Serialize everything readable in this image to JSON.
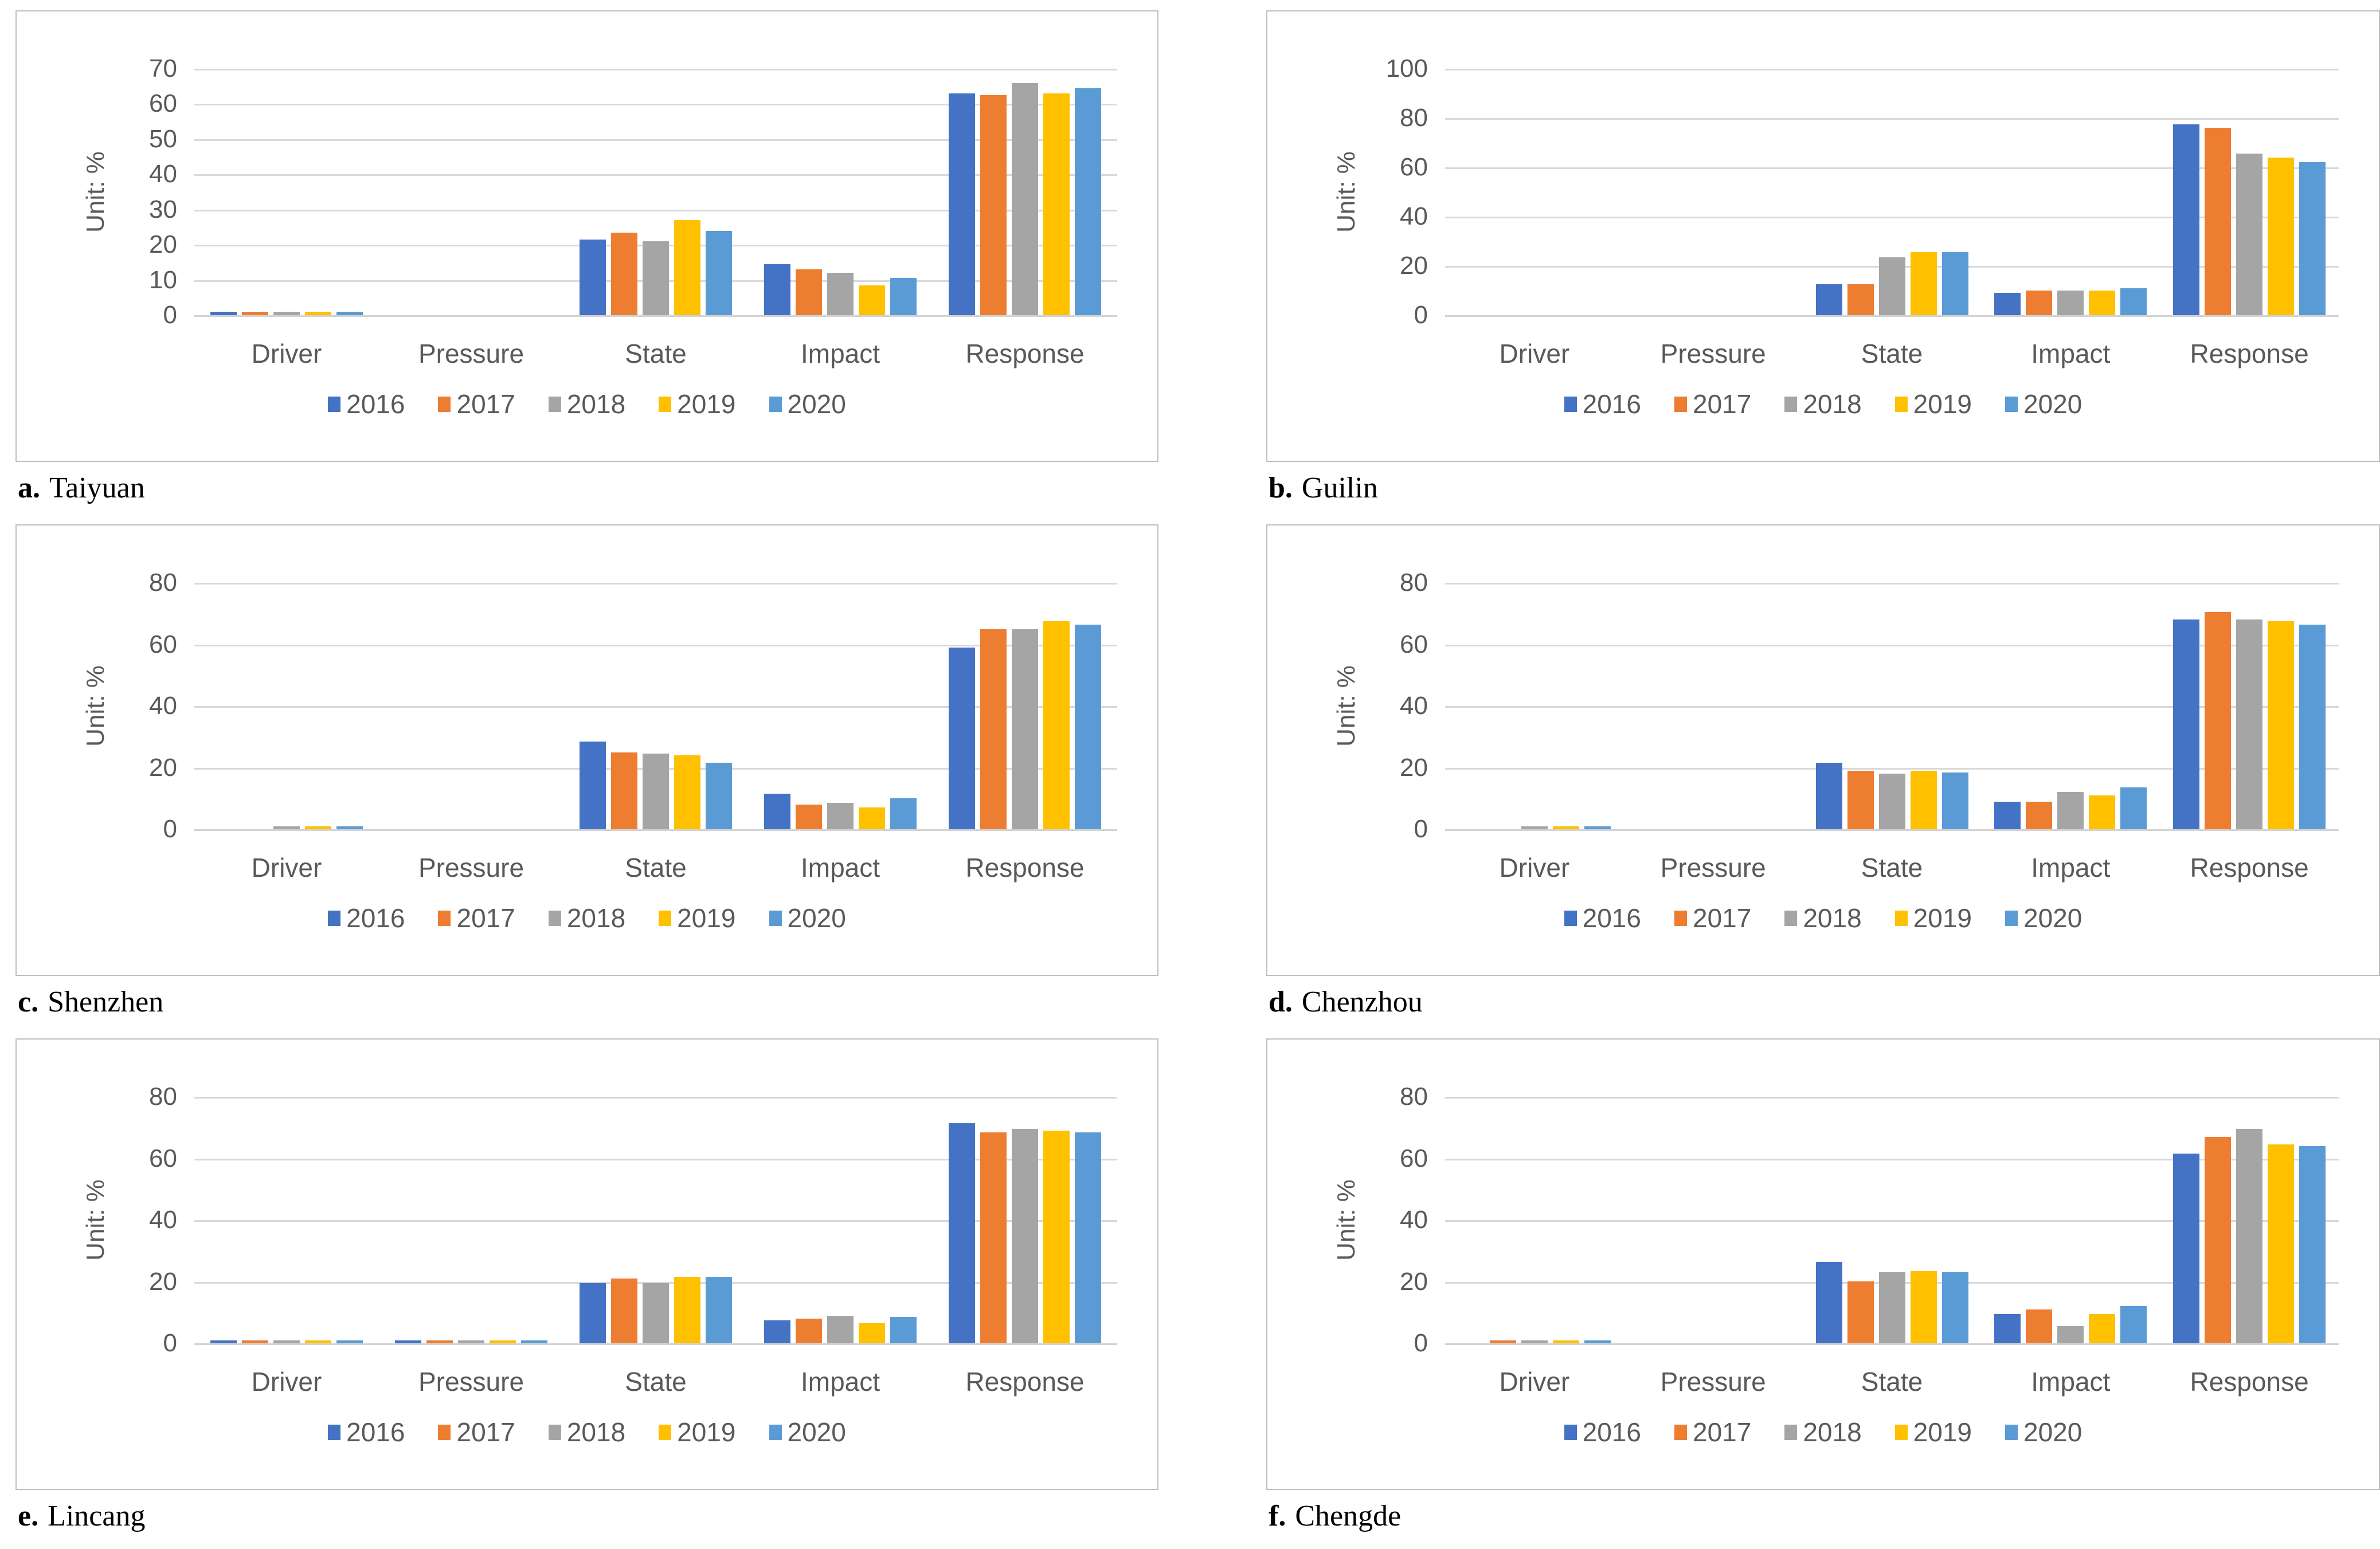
{
  "figure": {
    "y_axis_label": "Unit: %",
    "categories": [
      "Driver",
      "Pressure",
      "State",
      "Impact",
      "Response"
    ],
    "legend_years": [
      "2016",
      "2017",
      "2018",
      "2019",
      "2020"
    ],
    "series_colors": {
      "2016": "#4472C4",
      "2017": "#ED7D31",
      "2018": "#A5A5A5",
      "2019": "#FFC000",
      "2020": "#5B9BD5"
    },
    "style": {
      "gridline_color": "#D9D9D9",
      "axis_text_color": "#595959",
      "box_border_color": "#BFBFBF",
      "caption_color": "#000000",
      "background": "#FFFFFF"
    }
  },
  "chart_data": [
    {
      "id": "a",
      "type": "bar",
      "caption_letter": "a.",
      "caption_name": "Taiyuan",
      "ylabel": "Unit: %",
      "ylim": [
        0,
        70
      ],
      "ytick_step": 10,
      "grid": true,
      "legend_position": "bottom",
      "categories": [
        "Driver",
        "Pressure",
        "State",
        "Impact",
        "Response"
      ],
      "series": [
        {
          "name": "2016",
          "values": [
            1,
            0,
            21.5,
            14.5,
            63
          ]
        },
        {
          "name": "2017",
          "values": [
            1,
            0,
            23.5,
            13,
            62.5
          ]
        },
        {
          "name": "2018",
          "values": [
            1,
            0,
            21,
            12,
            66
          ]
        },
        {
          "name": "2019",
          "values": [
            1,
            0,
            27,
            8.5,
            63
          ]
        },
        {
          "name": "2020",
          "values": [
            1,
            0,
            24,
            10.5,
            64.5
          ]
        }
      ]
    },
    {
      "id": "b",
      "type": "bar",
      "caption_letter": "b.",
      "caption_name": "Guilin",
      "ylabel": "Unit: %",
      "ylim": [
        0,
        100
      ],
      "ytick_step": 20,
      "grid": true,
      "legend_position": "bottom",
      "categories": [
        "Driver",
        "Pressure",
        "State",
        "Impact",
        "Response"
      ],
      "series": [
        {
          "name": "2016",
          "values": [
            0,
            0,
            12.5,
            9,
            77.5
          ]
        },
        {
          "name": "2017",
          "values": [
            0,
            0,
            12.5,
            10,
            76
          ]
        },
        {
          "name": "2018",
          "values": [
            0,
            0,
            23.5,
            10,
            65.5
          ]
        },
        {
          "name": "2019",
          "values": [
            0,
            0,
            25.5,
            10,
            64
          ]
        },
        {
          "name": "2020",
          "values": [
            0,
            0,
            25.5,
            11,
            62
          ]
        }
      ]
    },
    {
      "id": "c",
      "type": "bar",
      "caption_letter": "c.",
      "caption_name": "Shenzhen",
      "ylabel": "Unit: %",
      "ylim": [
        0,
        80
      ],
      "ytick_step": 20,
      "grid": true,
      "legend_position": "bottom",
      "categories": [
        "Driver",
        "Pressure",
        "State",
        "Impact",
        "Response"
      ],
      "series": [
        {
          "name": "2016",
          "values": [
            0,
            0,
            28.5,
            11.5,
            59
          ]
        },
        {
          "name": "2017",
          "values": [
            0,
            0,
            25,
            8,
            65
          ]
        },
        {
          "name": "2018",
          "values": [
            1,
            0,
            24.5,
            8.5,
            65
          ]
        },
        {
          "name": "2019",
          "values": [
            1,
            0,
            24,
            7,
            67.5
          ]
        },
        {
          "name": "2020",
          "values": [
            1,
            0,
            21.5,
            10,
            66.5
          ]
        }
      ]
    },
    {
      "id": "d",
      "type": "bar",
      "caption_letter": "d.",
      "caption_name": "Chenzhou",
      "ylabel": "Unit: %",
      "ylim": [
        0,
        80
      ],
      "ytick_step": 20,
      "grid": true,
      "legend_position": "bottom",
      "categories": [
        "Driver",
        "Pressure",
        "State",
        "Impact",
        "Response"
      ],
      "series": [
        {
          "name": "2016",
          "values": [
            0,
            0,
            21.5,
            9,
            68
          ]
        },
        {
          "name": "2017",
          "values": [
            0,
            0,
            19,
            9,
            70.5
          ]
        },
        {
          "name": "2018",
          "values": [
            1,
            0,
            18,
            12,
            68
          ]
        },
        {
          "name": "2019",
          "values": [
            1,
            0,
            19,
            11,
            67.5
          ]
        },
        {
          "name": "2020",
          "values": [
            1,
            0,
            18.5,
            13.5,
            66.5
          ]
        }
      ]
    },
    {
      "id": "e",
      "type": "bar",
      "caption_letter": "e.",
      "caption_name": "Lincang",
      "ylabel": "Unit: %",
      "ylim": [
        0,
        80
      ],
      "ytick_step": 20,
      "grid": true,
      "legend_position": "bottom",
      "categories": [
        "Driver",
        "Pressure",
        "State",
        "Impact",
        "Response"
      ],
      "series": [
        {
          "name": "2016",
          "values": [
            1,
            1,
            19.5,
            7.5,
            71.5
          ]
        },
        {
          "name": "2017",
          "values": [
            1,
            1,
            21,
            8,
            68.5
          ]
        },
        {
          "name": "2018",
          "values": [
            1,
            1,
            19.5,
            9,
            69.5
          ]
        },
        {
          "name": "2019",
          "values": [
            1,
            1,
            21.5,
            6.5,
            69
          ]
        },
        {
          "name": "2020",
          "values": [
            1,
            1,
            21.5,
            8.5,
            68.5
          ]
        }
      ]
    },
    {
      "id": "f",
      "type": "bar",
      "caption_letter": "f.",
      "caption_name": "Chengde",
      "ylabel": "Unit: %",
      "ylim": [
        0,
        80
      ],
      "ytick_step": 20,
      "grid": true,
      "legend_position": "bottom",
      "categories": [
        "Driver",
        "Pressure",
        "State",
        "Impact",
        "Response"
      ],
      "series": [
        {
          "name": "2016",
          "values": [
            0,
            0,
            26.5,
            9.5,
            61.5
          ]
        },
        {
          "name": "2017",
          "values": [
            1,
            0,
            20,
            11,
            67
          ]
        },
        {
          "name": "2018",
          "values": [
            1,
            0,
            23,
            5.5,
            69.5
          ]
        },
        {
          "name": "2019",
          "values": [
            1,
            0,
            23.5,
            9.5,
            64.5
          ]
        },
        {
          "name": "2020",
          "values": [
            1,
            0,
            23,
            12,
            64
          ]
        }
      ]
    }
  ]
}
